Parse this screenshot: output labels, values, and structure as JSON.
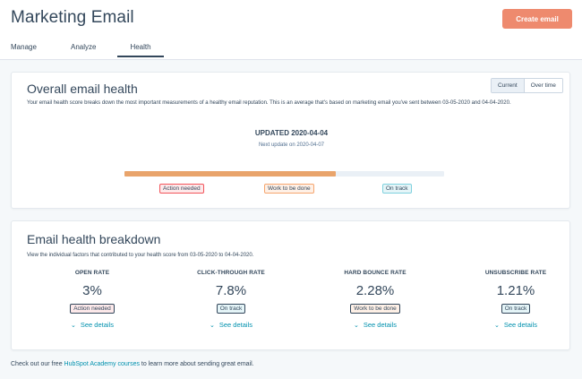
{
  "header": {
    "title": "Marketing Email",
    "create_button": "Create email",
    "tabs": [
      "Manage",
      "Analyze",
      "Health"
    ]
  },
  "overall": {
    "title": "Overall email health",
    "description": "Your email health score breaks down the most important measurements of a healthy email reputation. This is an average that's based on marketing email you've sent between 03-05-2020 and 04-04-2020.",
    "toggle": [
      "Current",
      "Over time"
    ],
    "updated": "UPDATED 2020-04-04",
    "next_update": "Next update on 2020-04-07",
    "bar_progress": 0.66,
    "scale_labels": [
      "Action needed",
      "Work to be done",
      "On track"
    ]
  },
  "breakdown": {
    "title": "Email health breakdown",
    "description": "View the individual factors that contributed to your health score from 03-05-2020 to 04-04-2020.",
    "see_details": "See details",
    "metrics": [
      {
        "label": "OPEN RATE",
        "value": "3%",
        "status": "Action needed"
      },
      {
        "label": "CLICK-THROUGH RATE",
        "value": "7.8%",
        "status": "On track"
      },
      {
        "label": "HARD BOUNCE RATE",
        "value": "2.28%",
        "status": "Work to be done"
      },
      {
        "label": "UNSUBSCRIBE RATE",
        "value": "1.21%",
        "status": "On track"
      }
    ]
  },
  "footer": {
    "prefix": "Check out our free ",
    "link": "HubSpot Academy courses",
    "suffix": " to learn more about sending great email."
  },
  "colors": {
    "accent": "#ee8a6e",
    "link": "#0091ae",
    "bar_fill": "#e9a46b",
    "action_needed": "#f2545b",
    "work_to_be_done": "#f5a66f",
    "on_track": "#7fd1de"
  }
}
